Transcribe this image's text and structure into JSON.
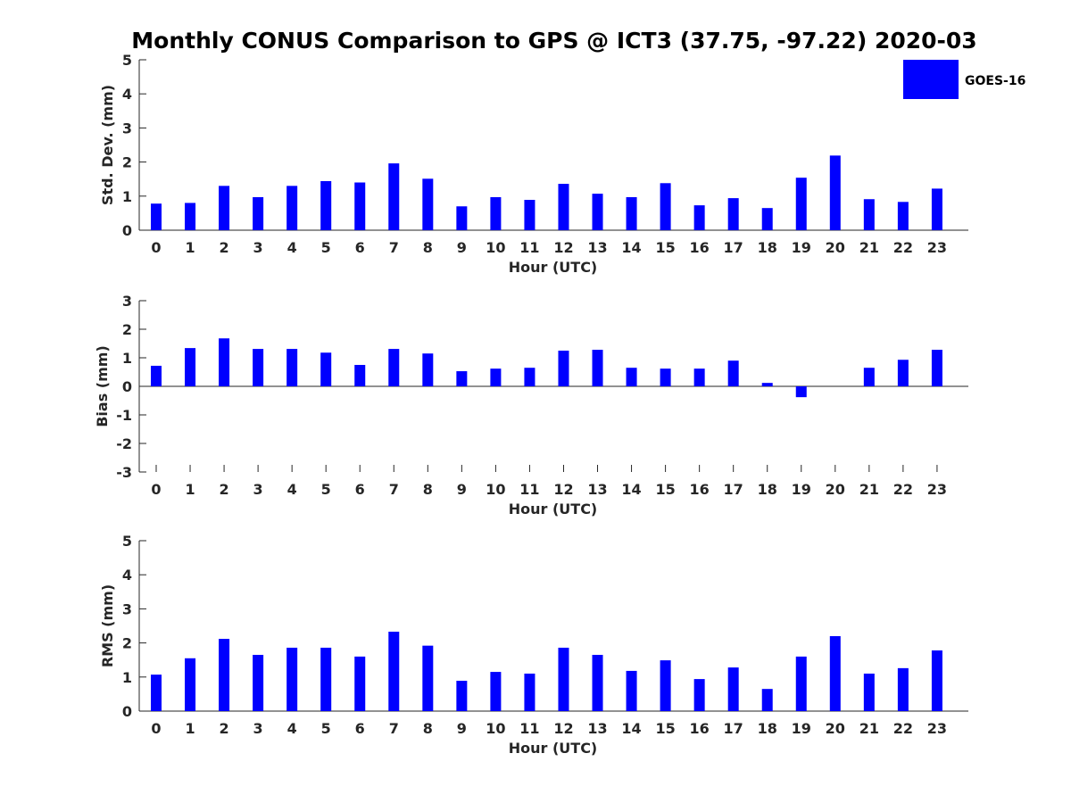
{
  "chart_data": [
    {
      "type": "bar",
      "title": "Monthly CONUS Comparison to GPS @ ICT3 (37.75, -97.22) 2020-03",
      "xlabel": "Hour (UTC)",
      "ylabel": "Std. Dev. (mm)",
      "ylim": [
        0,
        5
      ],
      "yticks": [
        0,
        1,
        2,
        3,
        4,
        5
      ],
      "categories": [
        "0",
        "1",
        "2",
        "3",
        "4",
        "5",
        "6",
        "7",
        "8",
        "9",
        "10",
        "11",
        "12",
        "13",
        "14",
        "15",
        "16",
        "17",
        "18",
        "19",
        "20",
        "21",
        "22",
        "23"
      ],
      "series": [
        {
          "name": "GOES-16",
          "color": "#0000ff",
          "values": [
            0.78,
            0.8,
            1.3,
            0.97,
            1.3,
            1.44,
            1.4,
            1.96,
            1.51,
            0.7,
            0.97,
            0.89,
            1.36,
            1.07,
            0.97,
            1.38,
            0.73,
            0.94,
            0.65,
            1.54,
            2.19,
            0.91,
            0.83,
            1.22
          ]
        }
      ],
      "legend": {
        "entries": [
          "GOES-16"
        ],
        "position": "top-right"
      }
    },
    {
      "type": "bar",
      "title": "",
      "xlabel": "Hour (UTC)",
      "ylabel": "Bias (mm)",
      "ylim": [
        -3,
        3
      ],
      "yticks": [
        -3,
        -2,
        -1,
        0,
        1,
        2,
        3
      ],
      "categories": [
        "0",
        "1",
        "2",
        "3",
        "4",
        "5",
        "6",
        "7",
        "8",
        "9",
        "10",
        "11",
        "12",
        "13",
        "14",
        "15",
        "16",
        "17",
        "18",
        "19",
        "20",
        "21",
        "22",
        "23"
      ],
      "series": [
        {
          "name": "GOES-16",
          "color": "#0000ff",
          "values": [
            0.72,
            1.34,
            1.68,
            1.31,
            1.31,
            1.18,
            0.75,
            1.31,
            1.15,
            0.53,
            0.62,
            0.65,
            1.25,
            1.28,
            0.65,
            0.62,
            0.62,
            0.9,
            0.12,
            -0.38,
            0.0,
            0.65,
            0.93,
            1.28
          ]
        }
      ]
    },
    {
      "type": "bar",
      "title": "",
      "xlabel": "Hour (UTC)",
      "ylabel": "RMS (mm)",
      "ylim": [
        0,
        5
      ],
      "yticks": [
        0,
        1,
        2,
        3,
        4,
        5
      ],
      "categories": [
        "0",
        "1",
        "2",
        "3",
        "4",
        "5",
        "6",
        "7",
        "8",
        "9",
        "10",
        "11",
        "12",
        "13",
        "14",
        "15",
        "16",
        "17",
        "18",
        "19",
        "20",
        "21",
        "22",
        "23"
      ],
      "series": [
        {
          "name": "GOES-16",
          "color": "#0000ff",
          "values": [
            1.07,
            1.55,
            2.12,
            1.65,
            1.86,
            1.86,
            1.6,
            2.33,
            1.92,
            0.89,
            1.15,
            1.1,
            1.86,
            1.65,
            1.18,
            1.49,
            0.94,
            1.28,
            0.65,
            1.6,
            2.2,
            1.1,
            1.26,
            1.78
          ]
        }
      ]
    }
  ]
}
